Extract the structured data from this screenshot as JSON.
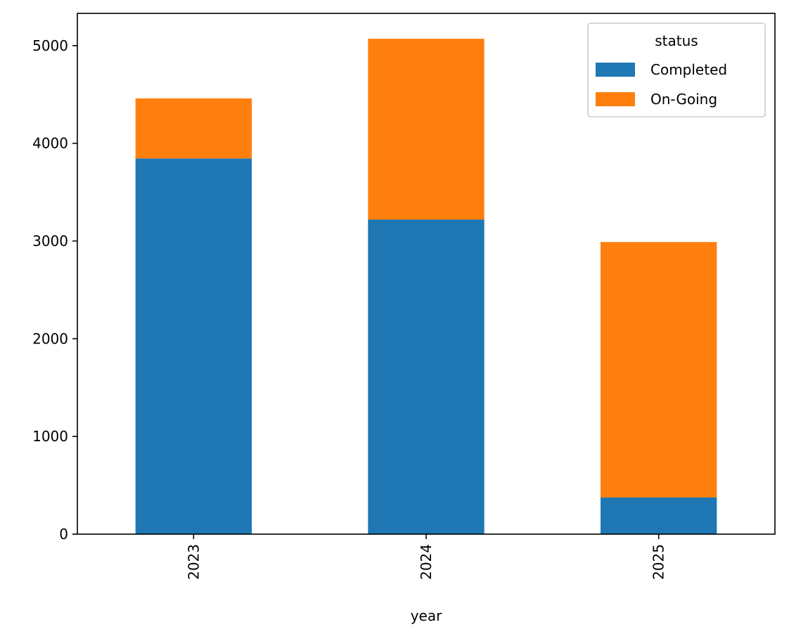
{
  "chart_data": {
    "type": "bar",
    "stacked": true,
    "categories": [
      "2023",
      "2024",
      "2025"
    ],
    "series": [
      {
        "name": "Completed",
        "color": "#1f77b4",
        "values": [
          3845,
          3220,
          375
        ]
      },
      {
        "name": "On-Going",
        "color": "#ff7f0e",
        "values": [
          615,
          1850,
          2615
        ]
      }
    ],
    "title": "",
    "xlabel": "year",
    "ylabel": "",
    "ylim": [
      0,
      5330
    ],
    "yticks": [
      0,
      1000,
      2000,
      3000,
      4000,
      5000
    ],
    "xtick_rotation": 90,
    "legend": {
      "title": "status",
      "placement": "top-right"
    },
    "grid": false
  }
}
